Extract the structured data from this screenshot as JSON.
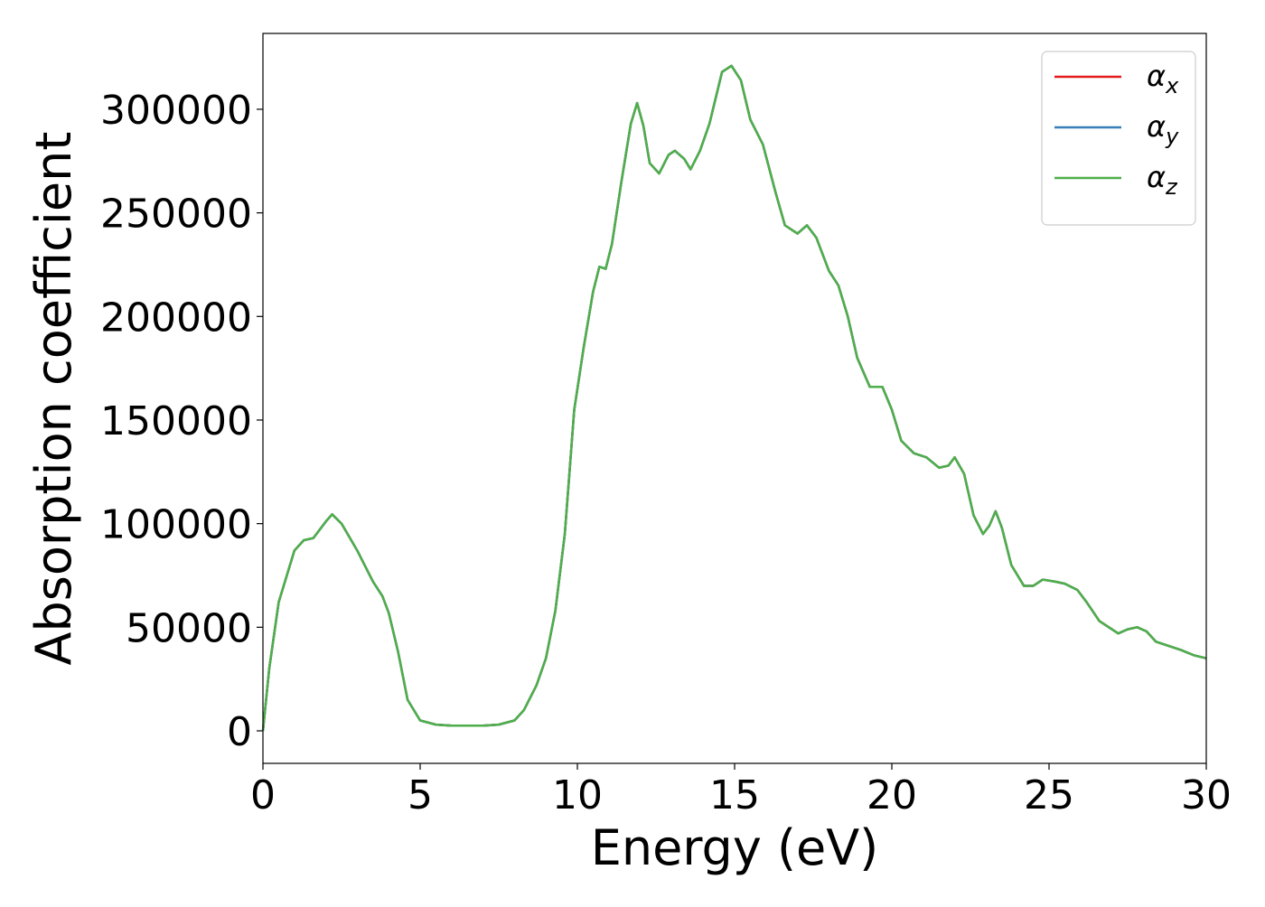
{
  "chart_data": {
    "type": "line",
    "x_label": "Energy (eV)",
    "y_label": "Absorption coefficient",
    "x": [
      0,
      0.2,
      0.5,
      1.0,
      1.3,
      1.6,
      2.0,
      2.2,
      2.5,
      3.0,
      3.5,
      3.8,
      4.0,
      4.3,
      4.6,
      5.0,
      5.5,
      6.0,
      7.0,
      7.5,
      8.0,
      8.3,
      8.7,
      9.0,
      9.3,
      9.6,
      9.9,
      10.2,
      10.5,
      10.7,
      10.9,
      11.1,
      11.4,
      11.7,
      11.9,
      12.1,
      12.3,
      12.6,
      12.9,
      13.1,
      13.4,
      13.6,
      13.9,
      14.2,
      14.6,
      14.9,
      15.2,
      15.5,
      15.9,
      16.3,
      16.6,
      17.0,
      17.3,
      17.6,
      18.0,
      18.3,
      18.6,
      18.9,
      19.3,
      19.7,
      20.0,
      20.3,
      20.7,
      21.1,
      21.5,
      21.8,
      22.0,
      22.3,
      22.6,
      22.9,
      23.1,
      23.3,
      23.5,
      23.8,
      24.2,
      24.5,
      24.8,
      25.2,
      25.5,
      25.9,
      26.2,
      26.6,
      26.9,
      27.2,
      27.5,
      27.8,
      28.1,
      28.4,
      28.8,
      29.2,
      29.6,
      30.0
    ],
    "series": [
      {
        "name": "αx",
        "color": "#e41a1c",
        "values": [
          0,
          30000,
          62000,
          87000,
          92000,
          93000,
          101000,
          104500,
          100000,
          87000,
          72000,
          65000,
          57000,
          38000,
          15000,
          5000,
          3000,
          2500,
          2500,
          3000,
          5000,
          10000,
          22000,
          35000,
          58000,
          95000,
          155000,
          185000,
          212000,
          224000,
          223000,
          235000,
          265000,
          293000,
          303000,
          292000,
          274000,
          269000,
          278000,
          280000,
          276000,
          271000,
          280000,
          293000,
          318000,
          321000,
          314000,
          295000,
          283000,
          260000,
          244000,
          240000,
          244000,
          238000,
          222000,
          215000,
          200000,
          180000,
          166000,
          166000,
          155000,
          140000,
          134000,
          132000,
          127000,
          128000,
          132000,
          124000,
          104000,
          95000,
          99000,
          106000,
          98000,
          80000,
          70000,
          70000,
          73000,
          72000,
          71000,
          68000,
          62000,
          53000,
          50000,
          47000,
          49000,
          50000,
          48000,
          43000,
          41000,
          39000,
          36500,
          35000
        ]
      },
      {
        "name": "αy",
        "color": "#377eb8",
        "values": [
          0,
          30000,
          62000,
          87000,
          92000,
          93000,
          101000,
          104500,
          100000,
          87000,
          72000,
          65000,
          57000,
          38000,
          15000,
          5000,
          3000,
          2500,
          2500,
          3000,
          5000,
          10000,
          22000,
          35000,
          58000,
          95000,
          155000,
          185000,
          212000,
          224000,
          223000,
          235000,
          265000,
          293000,
          303000,
          292000,
          274000,
          269000,
          278000,
          280000,
          276000,
          271000,
          280000,
          293000,
          318000,
          321000,
          314000,
          295000,
          283000,
          260000,
          244000,
          240000,
          244000,
          238000,
          222000,
          215000,
          200000,
          180000,
          166000,
          166000,
          155000,
          140000,
          134000,
          132000,
          127000,
          128000,
          132000,
          124000,
          104000,
          95000,
          99000,
          106000,
          98000,
          80000,
          70000,
          70000,
          73000,
          72000,
          71000,
          68000,
          62000,
          53000,
          50000,
          47000,
          49000,
          50000,
          48000,
          43000,
          41000,
          39000,
          36500,
          35000
        ]
      },
      {
        "name": "αz",
        "color": "#4daf4a",
        "values": [
          0,
          30000,
          62000,
          87000,
          92000,
          93000,
          101000,
          104500,
          100000,
          87000,
          72000,
          65000,
          57000,
          38000,
          15000,
          5000,
          3000,
          2500,
          2500,
          3000,
          5000,
          10000,
          22000,
          35000,
          58000,
          95000,
          155000,
          185000,
          212000,
          224000,
          223000,
          235000,
          265000,
          293000,
          303000,
          292000,
          274000,
          269000,
          278000,
          280000,
          276000,
          271000,
          280000,
          293000,
          318000,
          321000,
          314000,
          295000,
          283000,
          260000,
          244000,
          240000,
          244000,
          238000,
          222000,
          215000,
          200000,
          180000,
          166000,
          166000,
          155000,
          140000,
          134000,
          132000,
          127000,
          128000,
          132000,
          124000,
          104000,
          95000,
          99000,
          106000,
          98000,
          80000,
          70000,
          70000,
          73000,
          72000,
          71000,
          68000,
          62000,
          53000,
          50000,
          47000,
          49000,
          50000,
          48000,
          43000,
          41000,
          39000,
          36500,
          35000
        ]
      }
    ],
    "xlim": [
      0,
      30
    ],
    "xticks": [
      0,
      5,
      10,
      15,
      20,
      25,
      30
    ],
    "ylim": [
      -15700,
      336600
    ],
    "yticks": [
      0,
      50000,
      100000,
      150000,
      200000,
      250000,
      300000
    ],
    "grid": false,
    "legend": "upper right"
  }
}
